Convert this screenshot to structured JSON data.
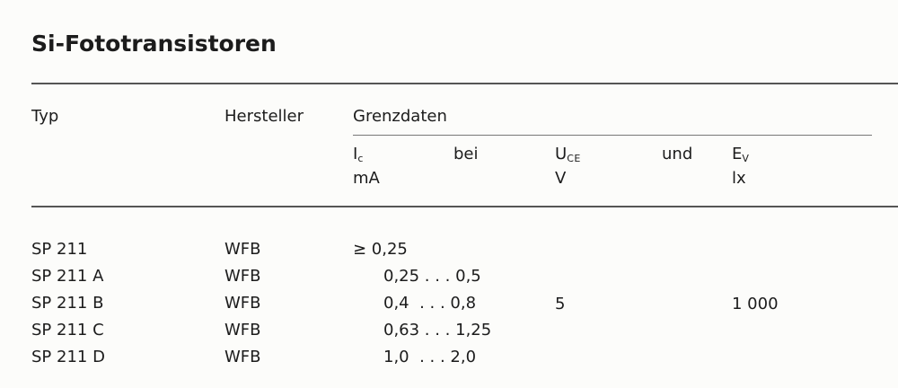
{
  "title": "Si-Fototransistoren",
  "headers": {
    "typ": "Typ",
    "hersteller": "Hersteller",
    "grenzdaten": "Grenzdaten",
    "ic": "I",
    "ic_sub": "c",
    "ic_unit": "mA",
    "bei": "bei",
    "uce": "U",
    "uce_sub": "CE",
    "uce_unit": "V",
    "und": "und",
    "ev": "E",
    "ev_sub": "V",
    "ev_unit": "lx"
  },
  "rows": [
    {
      "typ": "SP 211",
      "hersteller": "WFB",
      "ic": "≥ 0,25"
    },
    {
      "typ": "SP 211 A",
      "hersteller": "WFB",
      "ic": "0,25 . . . 0,5"
    },
    {
      "typ": "SP 211 B",
      "hersteller": "WFB",
      "ic": "0,4  . . . 0,8"
    },
    {
      "typ": "SP 211 C",
      "hersteller": "WFB",
      "ic": "0,63 . . . 1,25"
    },
    {
      "typ": "SP 211 D",
      "hersteller": "WFB",
      "ic": "1,0  . . . 2,0"
    }
  ],
  "common": {
    "uce": "5",
    "ev": "1 000"
  }
}
